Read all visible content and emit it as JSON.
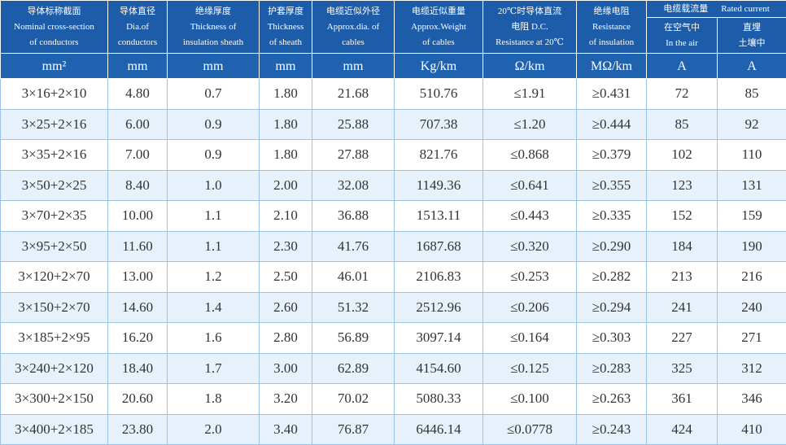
{
  "table": {
    "header": [
      [
        "导体标称截面",
        "Nominal cross-section",
        "of conductors"
      ],
      [
        "导体直径",
        "Dia.of",
        "conductors"
      ],
      [
        "绝缘厚度",
        "Thickness of",
        "insulation sheath"
      ],
      [
        "护套厚度",
        "Thickness",
        "of sheath"
      ],
      [
        "电缆近似外径",
        "Approx.dia. of",
        "cables"
      ],
      [
        "电缆近似重量",
        "Approx.Weight",
        "of cables"
      ],
      [
        "20℃时导体直流",
        "电阻 D.C.",
        "Resistance at 20℃"
      ],
      [
        "绝缘电阻",
        "Resistance",
        "of insulation"
      ]
    ],
    "current_header": [
      "电缆载流量",
      "Rated current"
    ],
    "current_sub": [
      [
        "在空气中",
        "In the air"
      ],
      [
        "直埋",
        "土壤中"
      ]
    ],
    "units": [
      "mm²",
      "mm",
      "mm",
      "mm",
      "mm",
      "Kg/km",
      "Ω/km",
      "MΩ/km",
      "A",
      "A"
    ],
    "rows": [
      [
        "3×16+2×10",
        "4.80",
        "0.7",
        "1.80",
        "21.68",
        "510.76",
        "≤1.91",
        "≥0.431",
        "72",
        "85"
      ],
      [
        "3×25+2×16",
        "6.00",
        "0.9",
        "1.80",
        "25.88",
        "707.38",
        "≤1.20",
        "≥0.444",
        "85",
        "92"
      ],
      [
        "3×35+2×16",
        "7.00",
        "0.9",
        "1.80",
        "27.88",
        "821.76",
        "≤0.868",
        "≥0.379",
        "102",
        "110"
      ],
      [
        "3×50+2×25",
        "8.40",
        "1.0",
        "2.00",
        "32.08",
        "1149.36",
        "≤0.641",
        "≥0.355",
        "123",
        "131"
      ],
      [
        "3×70+2×35",
        "10.00",
        "1.1",
        "2.10",
        "36.88",
        "1513.11",
        "≤0.443",
        "≥0.335",
        "152",
        "159"
      ],
      [
        "3×95+2×50",
        "11.60",
        "1.1",
        "2.30",
        "41.76",
        "1687.68",
        "≤0.320",
        "≥0.290",
        "184",
        "190"
      ],
      [
        "3×120+2×70",
        "13.00",
        "1.2",
        "2.50",
        "46.01",
        "2106.83",
        "≤0.253",
        "≥0.282",
        "213",
        "216"
      ],
      [
        "3×150+2×70",
        "14.60",
        "1.4",
        "2.60",
        "51.32",
        "2512.96",
        "≤0.206",
        "≥0.294",
        "241",
        "240"
      ],
      [
        "3×185+2×95",
        "16.20",
        "1.6",
        "2.80",
        "56.89",
        "3097.14",
        "≤0.164",
        "≥0.303",
        "227",
        "271"
      ],
      [
        "3×240+2×120",
        "18.40",
        "1.7",
        "3.00",
        "62.89",
        "4154.60",
        "≤0.125",
        "≥0.283",
        "325",
        "312"
      ],
      [
        "3×300+2×150",
        "20.60",
        "1.8",
        "3.20",
        "70.02",
        "5080.33",
        "≤0.100",
        "≥0.263",
        "361",
        "346"
      ],
      [
        "3×400+2×185",
        "23.80",
        "2.0",
        "3.40",
        "76.87",
        "6446.14",
        "≤0.0778",
        "≥0.243",
        "424",
        "410"
      ]
    ]
  }
}
